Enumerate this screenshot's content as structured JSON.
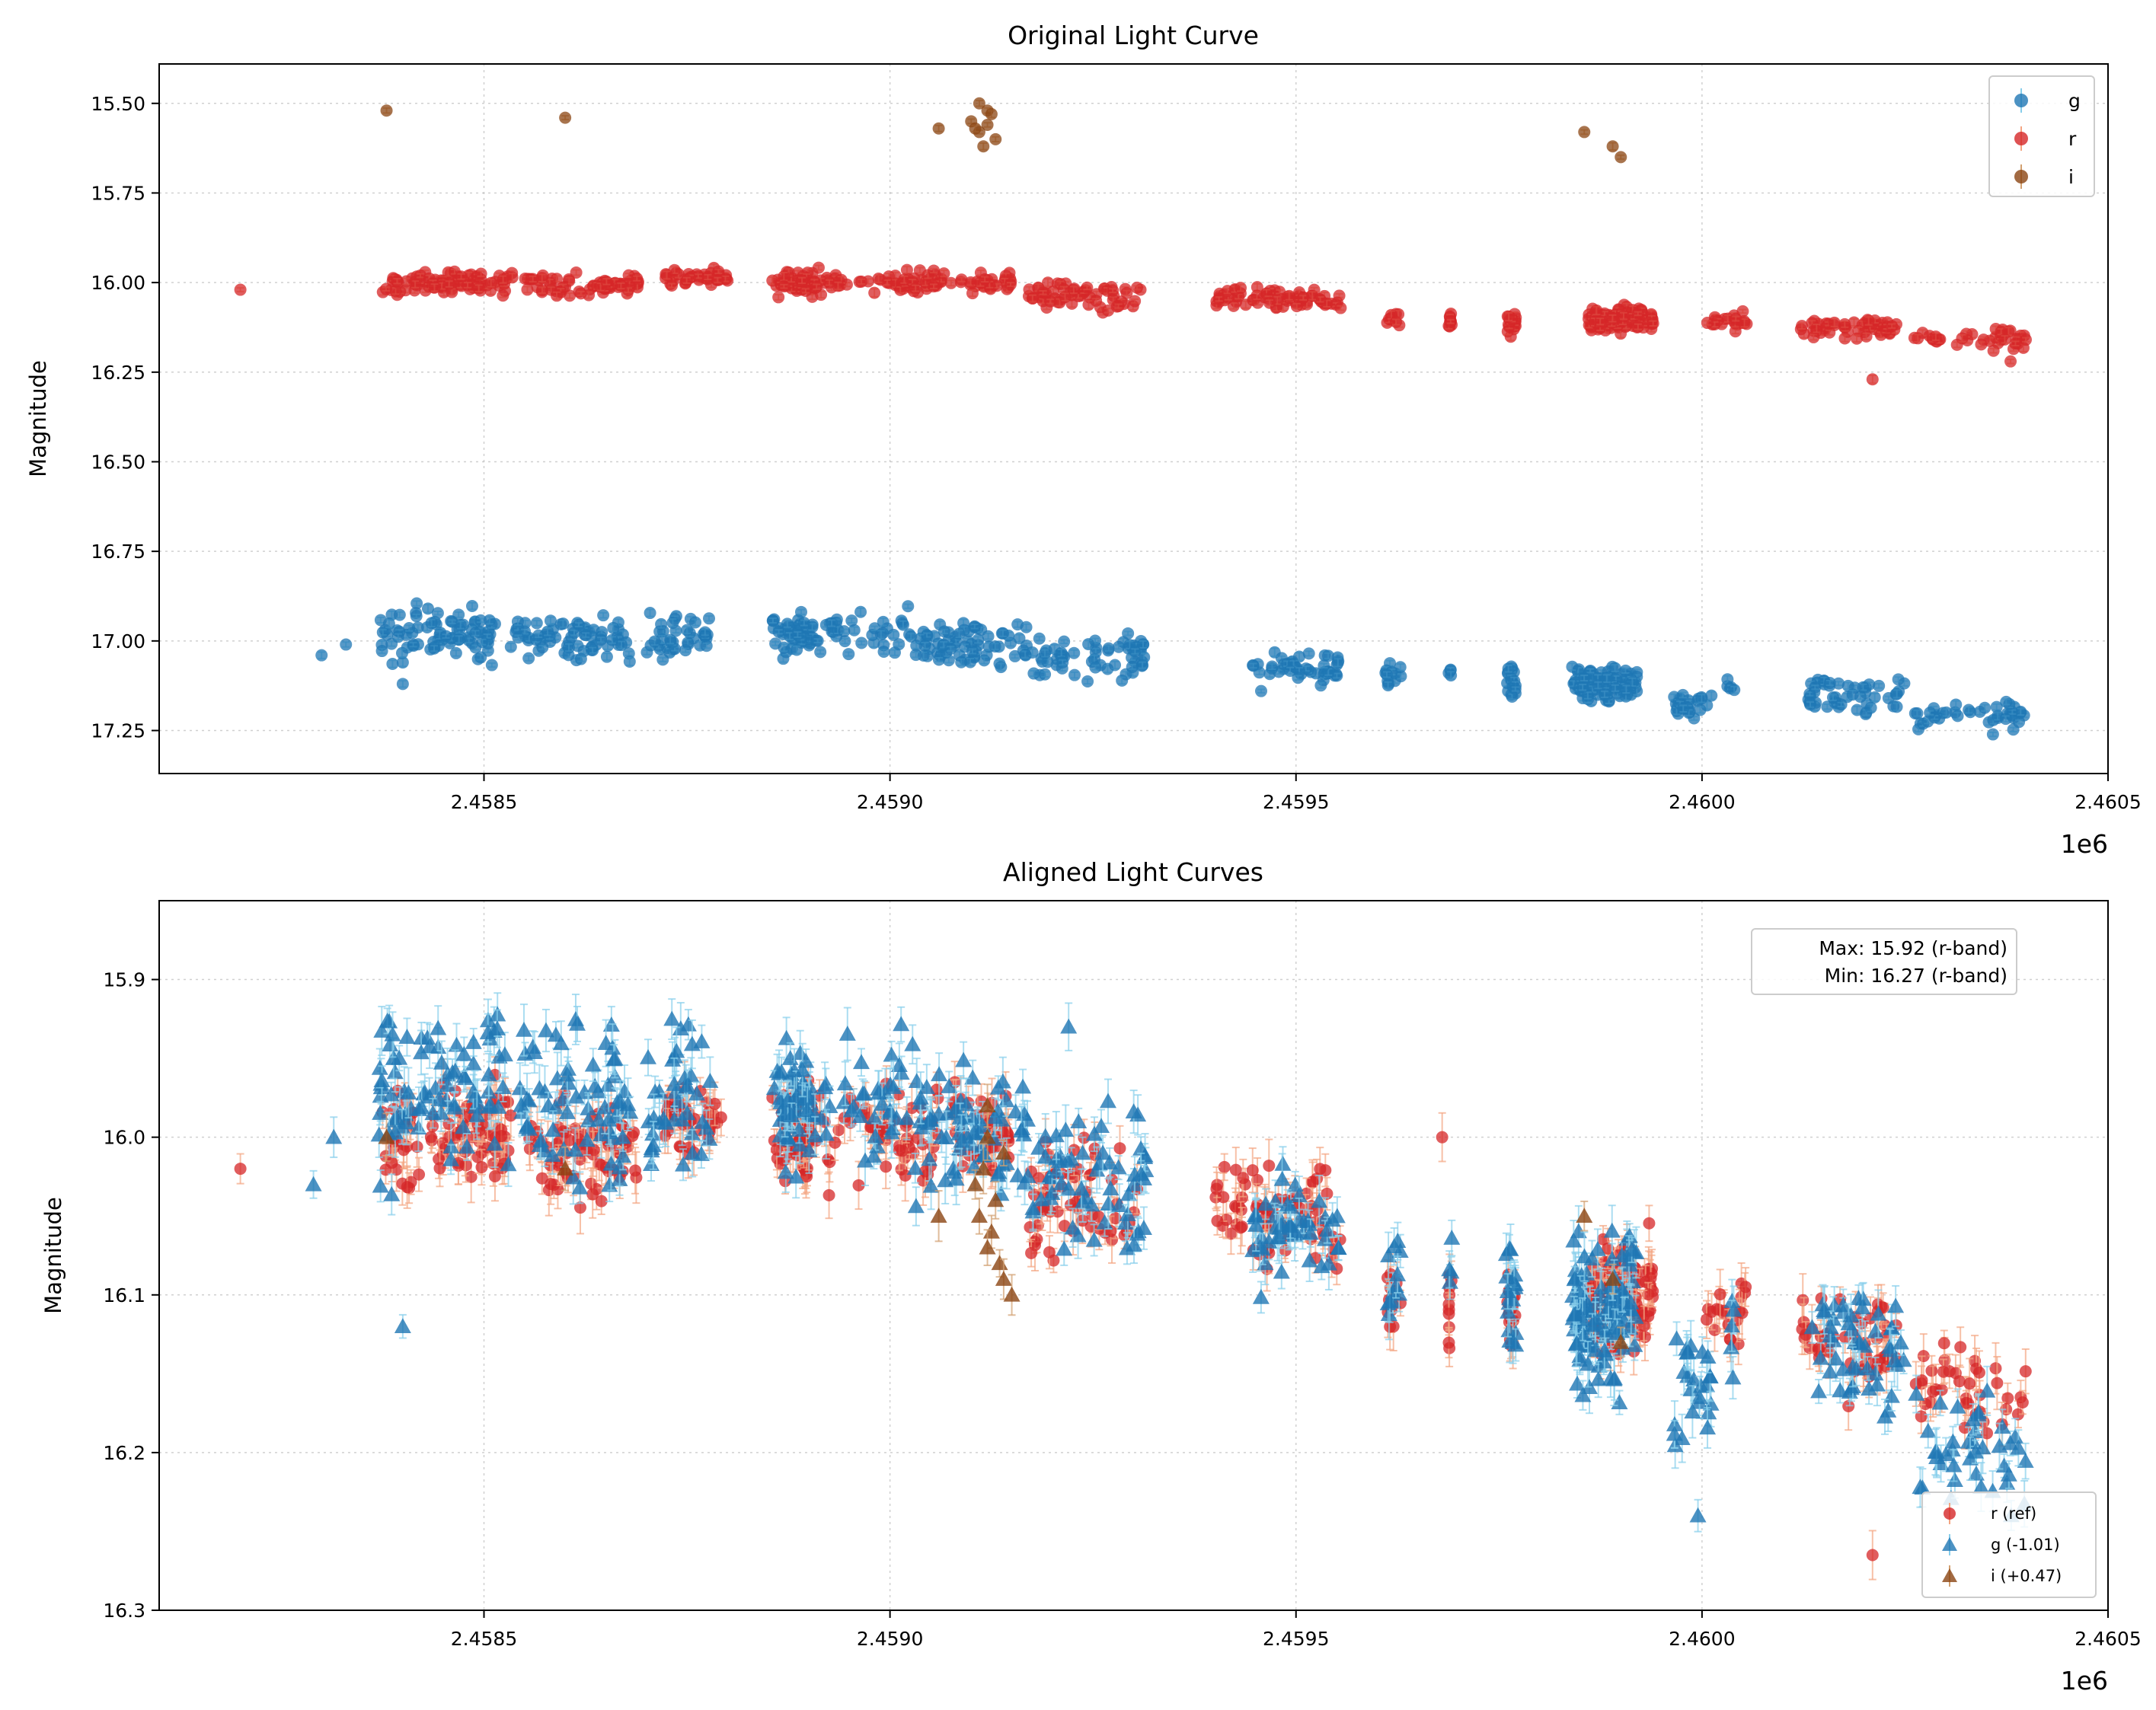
{
  "colors": {
    "g": "#1f77b4",
    "r": "#d62728",
    "i": "#8b4513",
    "g_err": "#87ceeb",
    "r_err": "#f4a582",
    "i_err": "#d2a070"
  },
  "chart_data": [
    {
      "type": "scatter",
      "title": "Original Light Curve",
      "xlabel": "",
      "ylabel": "Magnitude",
      "x_offset_text": "1e6",
      "xlim": [
        2458100,
        2460500
      ],
      "ylim": [
        17.37,
        15.39
      ],
      "y_inverted": true,
      "grid": true,
      "x_ticks": [
        2458500,
        2459000,
        2459500,
        2460000,
        2460500
      ],
      "x_tick_labels": [
        "2.4585",
        "2.4590",
        "2.4595",
        "2.4600",
        "2.4605"
      ],
      "y_ticks": [
        15.5,
        15.75,
        16.0,
        16.25,
        16.5,
        16.75,
        17.0,
        17.25
      ],
      "y_tick_labels": [
        "15.50",
        "15.75",
        "16.00",
        "16.25",
        "16.50",
        "16.75",
        "17.00",
        "17.25"
      ],
      "legend": {
        "position": "upper right",
        "entries": [
          "g",
          "r",
          "i"
        ]
      },
      "series": [
        {
          "name": "g",
          "marker": "circle",
          "clusters": [
            [
              2458300,
              17.04,
              0.01,
              1,
              0
            ],
            [
              2458330,
              17.01,
              0.01,
              1,
              0
            ],
            [
              2458400,
              17.12,
              0.01,
              1,
              0
            ],
            [
              2458400,
              17.06,
              0.01,
              1,
              0
            ],
            [
              2458455,
              16.98,
              0.06,
              85,
              85
            ],
            [
              2458610,
              16.99,
              0.05,
              70,
              70
            ],
            [
              2458740,
              16.99,
              0.05,
              40,
              40
            ],
            [
              2458880,
              16.98,
              0.04,
              50,
              25
            ],
            [
              2458960,
              16.98,
              0.05,
              40,
              70
            ],
            [
              2459100,
              17.01,
              0.05,
              70,
              70
            ],
            [
              2459245,
              17.04,
              0.05,
              60,
              70
            ],
            [
              2459500,
              17.07,
              0.04,
              50,
              55
            ],
            [
              2459620,
              17.1,
              0.03,
              12,
              10
            ],
            [
              2459690,
              17.09,
              0.02,
              4,
              2
            ],
            [
              2459765,
              17.11,
              0.04,
              20,
              6
            ],
            [
              2459880,
              17.12,
              0.04,
              110,
              40
            ],
            [
              2459990,
              17.18,
              0.03,
              25,
              25
            ],
            [
              2460035,
              17.14,
              0.03,
              5,
              5
            ],
            [
              2460190,
              17.15,
              0.04,
              50,
              60
            ],
            [
              2460330,
              17.21,
              0.03,
              40,
              70
            ]
          ]
        },
        {
          "name": "r",
          "marker": "circle",
          "clusters": [
            [
              2458200,
              16.02,
              0.01,
              1,
              0
            ],
            [
              2458455,
              16.0,
              0.025,
              90,
              80
            ],
            [
              2458620,
              16.01,
              0.025,
              70,
              70
            ],
            [
              2458760,
              15.99,
              0.02,
              40,
              40
            ],
            [
              2458880,
              16.0,
              0.025,
              50,
              25
            ],
            [
              2458960,
              16.0,
              0.025,
              45,
              70
            ],
            [
              2459080,
              16.0,
              0.025,
              60,
              70
            ],
            [
              2459240,
              16.04,
              0.03,
              60,
              70
            ],
            [
              2459420,
              16.04,
              0.025,
              20,
              20
            ],
            [
              2459500,
              16.05,
              0.025,
              50,
              55
            ],
            [
              2459620,
              16.1,
              0.02,
              10,
              10
            ],
            [
              2459690,
              16.11,
              0.03,
              10,
              2
            ],
            [
              2459765,
              16.11,
              0.025,
              20,
              6
            ],
            [
              2459900,
              16.1,
              0.025,
              110,
              40
            ],
            [
              2460030,
              16.11,
              0.02,
              20,
              25
            ],
            [
              2460180,
              16.13,
              0.025,
              50,
              60
            ],
            [
              2460330,
              16.16,
              0.025,
              40,
              70
            ],
            [
              2460210,
              16.27,
              0.005,
              1,
              0
            ],
            [
              2460380,
              16.22,
              0.005,
              1,
              0
            ]
          ]
        },
        {
          "name": "i",
          "marker": "circle",
          "points": [
            [
              2458380,
              15.52
            ],
            [
              2458600,
              15.54
            ],
            [
              2459060,
              15.57
            ],
            [
              2459110,
              15.5
            ],
            [
              2459120,
              15.52
            ],
            [
              2459100,
              15.55
            ],
            [
              2459110,
              15.58
            ],
            [
              2459130,
              15.6
            ],
            [
              2459115,
              15.62
            ],
            [
              2459125,
              15.53
            ],
            [
              2459105,
              15.57
            ],
            [
              2459120,
              15.56
            ],
            [
              2459855,
              15.58
            ],
            [
              2459890,
              15.62
            ],
            [
              2459900,
              15.65
            ]
          ]
        }
      ]
    },
    {
      "type": "scatter",
      "title": "Aligned Light Curves",
      "xlabel": "",
      "ylabel": "Magnitude",
      "x_offset_text": "1e6",
      "xlim": [
        2458100,
        2460500
      ],
      "ylim": [
        16.3,
        15.85
      ],
      "y_inverted": true,
      "grid": true,
      "x_ticks": [
        2458500,
        2459000,
        2459500,
        2460000,
        2460500
      ],
      "x_tick_labels": [
        "2.4585",
        "2.4590",
        "2.4595",
        "2.4600",
        "2.4605"
      ],
      "y_ticks": [
        15.9,
        16.0,
        16.1,
        16.2,
        16.3
      ],
      "y_tick_labels": [
        "15.9",
        "16.0",
        "16.1",
        "16.2",
        "16.3"
      ],
      "annotation": {
        "line1": "Max: 15.92 (r-band)",
        "line2": "Min: 16.27 (r-band)",
        "position": "upper right"
      },
      "legend": {
        "position": "lower right",
        "entries": [
          "r (ref)",
          "g (-1.01)",
          "i (+0.47)"
        ]
      },
      "series": [
        {
          "name": "r (ref)",
          "marker": "circle",
          "clusters": [
            [
              2458200,
              16.02,
              0.005,
              1,
              0
            ],
            [
              2458455,
              16.0,
              0.025,
              90,
              80
            ],
            [
              2458620,
              16.01,
              0.025,
              70,
              70
            ],
            [
              2458760,
              15.99,
              0.02,
              40,
              40
            ],
            [
              2458880,
              16.0,
              0.025,
              50,
              25
            ],
            [
              2458960,
              16.0,
              0.025,
              45,
              70
            ],
            [
              2459080,
              16.0,
              0.025,
              60,
              70
            ],
            [
              2459240,
              16.04,
              0.03,
              60,
              70
            ],
            [
              2459420,
              16.04,
              0.025,
              20,
              20
            ],
            [
              2459500,
              16.05,
              0.025,
              50,
              55
            ],
            [
              2459620,
              16.1,
              0.02,
              10,
              10
            ],
            [
              2459690,
              16.11,
              0.03,
              10,
              2
            ],
            [
              2459765,
              16.11,
              0.025,
              20,
              6
            ],
            [
              2459900,
              16.1,
              0.025,
              110,
              40
            ],
            [
              2460030,
              16.11,
              0.02,
              20,
              25
            ],
            [
              2460180,
              16.13,
              0.025,
              50,
              60
            ],
            [
              2460330,
              16.16,
              0.025,
              40,
              70
            ],
            [
              2460210,
              16.265,
              0.002,
              1,
              0
            ],
            [
              2459680,
              16.0,
              0.002,
              1,
              0
            ]
          ]
        },
        {
          "name": "g (-1.01)",
          "marker": "triangle",
          "clusters": [
            [
              2458290,
              16.03,
              0.005,
              1,
              0
            ],
            [
              2458315,
              16.0,
              0.005,
              1,
              0
            ],
            [
              2458400,
              16.12,
              0.005,
              1,
              0
            ],
            [
              2458455,
              15.97,
              0.04,
              85,
              85
            ],
            [
              2458610,
              15.98,
              0.04,
              70,
              70
            ],
            [
              2458740,
              15.98,
              0.04,
              40,
              40
            ],
            [
              2458880,
              15.98,
              0.035,
              50,
              25
            ],
            [
              2458960,
              15.98,
              0.035,
              40,
              70
            ],
            [
              2459100,
              16.0,
              0.035,
              70,
              70
            ],
            [
              2459245,
              16.03,
              0.04,
              60,
              70
            ],
            [
              2459500,
              16.06,
              0.035,
              50,
              55
            ],
            [
              2459620,
              16.09,
              0.03,
              12,
              10
            ],
            [
              2459690,
              16.08,
              0.02,
              4,
              2
            ],
            [
              2459765,
              16.1,
              0.035,
              20,
              6
            ],
            [
              2459880,
              16.11,
              0.035,
              110,
              40
            ],
            [
              2459990,
              16.17,
              0.03,
              25,
              25
            ],
            [
              2460035,
              16.13,
              0.025,
              5,
              5
            ],
            [
              2460190,
              16.14,
              0.035,
              50,
              60
            ],
            [
              2460330,
              16.2,
              0.03,
              40,
              70
            ],
            [
              2459995,
              16.24,
              0.002,
              1,
              0
            ],
            [
              2459220,
              15.93,
              0.002,
              1,
              0
            ]
          ]
        },
        {
          "name": "i (+0.47)",
          "marker": "triangle",
          "points": [
            [
              2459120,
              15.98
            ],
            [
              2459120,
              16.0
            ],
            [
              2459140,
              16.01
            ],
            [
              2459115,
              16.02
            ],
            [
              2459130,
              16.04
            ],
            [
              2459110,
              16.05
            ],
            [
              2459125,
              16.06
            ],
            [
              2459120,
              16.07
            ],
            [
              2459135,
              16.08
            ],
            [
              2459140,
              16.09
            ],
            [
              2459105,
              16.03
            ],
            [
              2459150,
              16.1
            ],
            [
              2459060,
              16.05
            ],
            [
              2458600,
              16.02
            ],
            [
              2459855,
              16.05
            ],
            [
              2459890,
              16.09
            ],
            [
              2459900,
              16.13
            ],
            [
              2458380,
              16.0
            ]
          ]
        }
      ]
    }
  ]
}
